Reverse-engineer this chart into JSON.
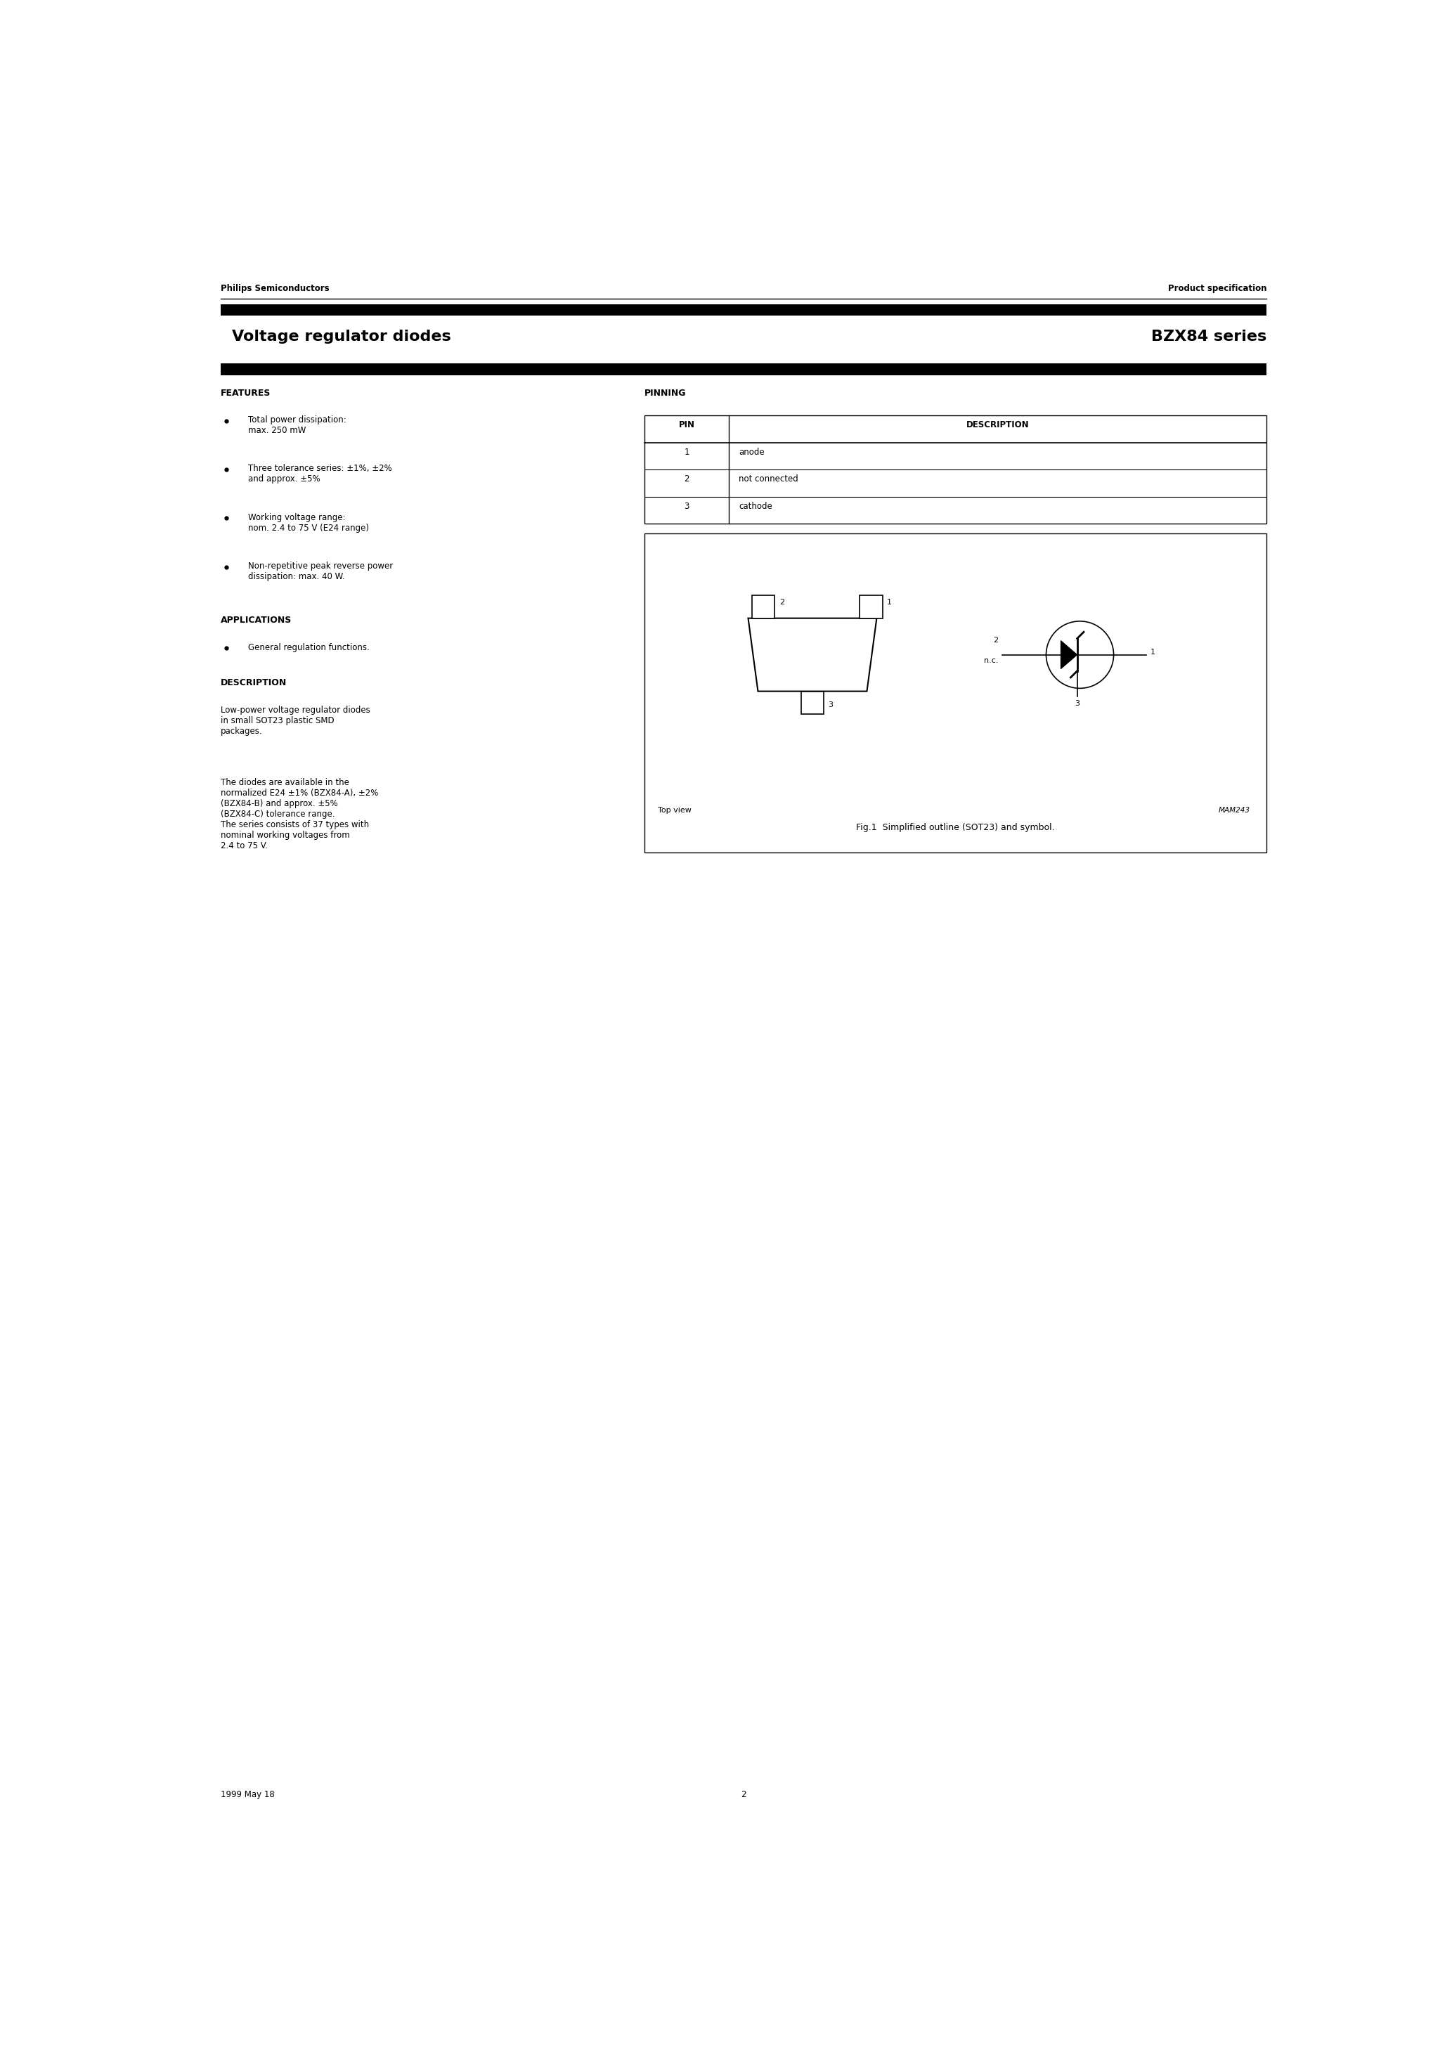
{
  "page_title_left": "Voltage regulator diodes",
  "page_title_right": "BZX84 series",
  "header_left": "Philips Semiconductors",
  "header_right": "Product specification",
  "footer_left": "1999 May 18",
  "footer_center": "2",
  "features_title": "FEATURES",
  "features": [
    "Total power dissipation:\nmax. 250 mW",
    "Three tolerance series: ±1%, ±2%\nand approx. ±5%",
    "Working voltage range:\nnom. 2.4 to 75 V (E24 range)",
    "Non-repetitive peak reverse power\ndissipation: max. 40 W."
  ],
  "applications_title": "APPLICATIONS",
  "applications": [
    "General regulation functions."
  ],
  "description_title": "DESCRIPTION",
  "description_text1": "Low-power voltage regulator diodes\nin small SOT23 plastic SMD\npackages.",
  "description_text2": "The diodes are available in the\nnormalized E24 ±1% (BZX84-A), ±2%\n(BZX84-B) and approx. ±5%\n(BZX84-C) tolerance range.\nThe series consists of 37 types with\nnominal working voltages from\n2.4 to 75 V.",
  "pinning_title": "PINNING",
  "pin_table": [
    {
      "pin": "PIN",
      "desc": "DESCRIPTION",
      "header": true
    },
    {
      "pin": "1",
      "desc": "anode",
      "header": false
    },
    {
      "pin": "2",
      "desc": "not connected",
      "header": false
    },
    {
      "pin": "3",
      "desc": "cathode",
      "header": false
    }
  ],
  "fig_caption": "Fig.1  Simplified outline (SOT23) and symbol.",
  "fig_label": "MAM243",
  "top_view_label": "Top view",
  "bg_color": "#ffffff",
  "text_color": "#000000",
  "black_bar_color": "#000000"
}
